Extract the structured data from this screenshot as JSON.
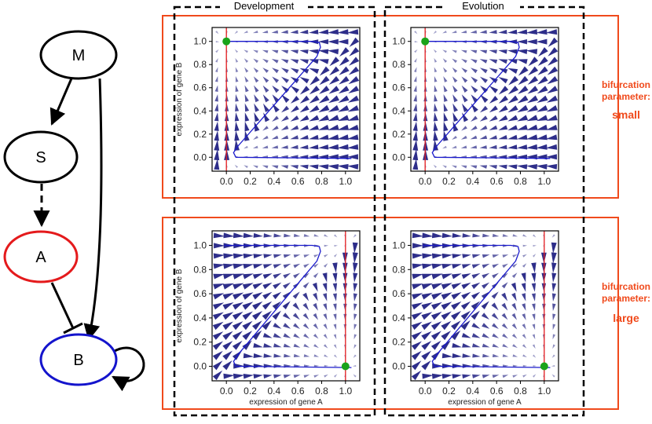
{
  "network": {
    "nodes": [
      {
        "id": "M",
        "label": "M",
        "color": "#000000"
      },
      {
        "id": "S",
        "label": "S",
        "color": "#000000"
      },
      {
        "id": "A",
        "label": "A",
        "color": "#e41a1c"
      },
      {
        "id": "B",
        "label": "B",
        "color": "#1414cc"
      }
    ],
    "edges": [
      {
        "from": "M",
        "to": "S",
        "type": "activation",
        "style": "solid"
      },
      {
        "from": "M",
        "to": "B",
        "type": "activation",
        "style": "solid"
      },
      {
        "from": "S",
        "to": "A",
        "type": "activation",
        "style": "dashed"
      },
      {
        "from": "A",
        "to": "B",
        "type": "repression",
        "style": "solid"
      },
      {
        "from": "B",
        "to": "B",
        "type": "activation",
        "style": "solid"
      }
    ]
  },
  "columns": {
    "development": "Development",
    "evolution": "Evolution"
  },
  "rows": [
    {
      "line1": "bifurcation",
      "line2": "parameter:",
      "value": "small"
    },
    {
      "line1": "bifurcation",
      "line2": "parameter:",
      "value": "large"
    }
  ],
  "colors": {
    "param_box": "#f04a1c",
    "arrow_field": "#2e2e8a",
    "trajectory": "#1a1acc",
    "red_line": "#e41a1c",
    "fixed_point": "#1aa31a"
  },
  "chart_data": [
    {
      "type": "scatter",
      "id": "dev-small",
      "xlabel": "",
      "ylabel": "expression of gene B",
      "xlim": [
        -0.12,
        1.12
      ],
      "ylim": [
        -0.12,
        1.12
      ],
      "xticks": [
        "0.0",
        "0.2",
        "0.4",
        "0.6",
        "0.8",
        "1.0"
      ],
      "yticks": [
        "0.0",
        "0.2",
        "0.4",
        "0.6",
        "0.8",
        "1.0"
      ],
      "bifurcation": "small",
      "vertical_line_x": 0.0,
      "fixed_point": [
        0.0,
        1.0
      ]
    },
    {
      "type": "scatter",
      "id": "evo-small",
      "xlabel": "",
      "ylabel": "",
      "xlim": [
        -0.12,
        1.12
      ],
      "ylim": [
        -0.12,
        1.12
      ],
      "xticks": [
        "0.0",
        "0.2",
        "0.4",
        "0.6",
        "0.8",
        "1.0"
      ],
      "yticks": [
        "0.0",
        "0.2",
        "0.4",
        "0.6",
        "0.8",
        "1.0"
      ],
      "bifurcation": "small",
      "vertical_line_x": 0.0,
      "fixed_point": [
        0.0,
        1.0
      ]
    },
    {
      "type": "scatter",
      "id": "dev-large",
      "xlabel": "expression of gene A",
      "ylabel": "expression of gene B",
      "xlim": [
        -0.12,
        1.12
      ],
      "ylim": [
        -0.12,
        1.12
      ],
      "xticks": [
        "0.0",
        "0.2",
        "0.4",
        "0.6",
        "0.8",
        "1.0"
      ],
      "yticks": [
        "0.0",
        "0.2",
        "0.4",
        "0.6",
        "0.8",
        "1.0"
      ],
      "bifurcation": "large",
      "vertical_line_x": 1.0,
      "fixed_point": [
        1.0,
        0.0
      ]
    },
    {
      "type": "scatter",
      "id": "evo-large",
      "xlabel": "expression of gene A",
      "ylabel": "",
      "xlim": [
        -0.12,
        1.12
      ],
      "ylim": [
        -0.12,
        1.12
      ],
      "xticks": [
        "0.0",
        "0.2",
        "0.4",
        "0.6",
        "0.8",
        "1.0"
      ],
      "yticks": [
        "0.0",
        "0.2",
        "0.4",
        "0.6",
        "0.8",
        "1.0"
      ],
      "bifurcation": "large",
      "vertical_line_x": 1.0,
      "fixed_point": [
        1.0,
        0.0
      ]
    }
  ],
  "nullcline_curve": [
    [
      -0.02,
      1.0
    ],
    [
      0.72,
      1.0
    ],
    [
      0.78,
      0.99
    ],
    [
      0.79,
      0.95
    ],
    [
      0.76,
      0.87
    ],
    [
      0.1,
      0.1
    ],
    [
      0.06,
      0.04
    ],
    [
      0.08,
      0.0
    ],
    [
      1.05,
      -0.01
    ]
  ]
}
